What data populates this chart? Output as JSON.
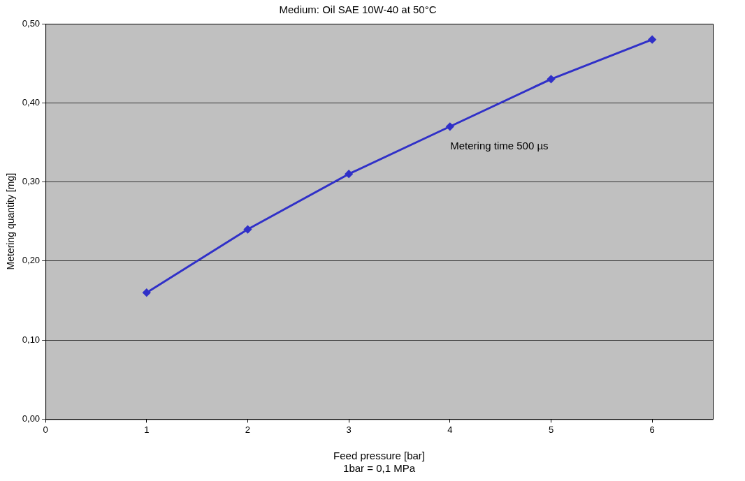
{
  "chart_data": {
    "type": "line",
    "title": "Medium: Oil SAE 10W-40 at 50°C",
    "xlabel": "Feed pressure [bar]\n1bar = 0,1 MPa",
    "ylabel": "Metering quantity [mg]",
    "x": [
      1,
      2,
      3,
      4,
      5,
      6
    ],
    "series": [
      {
        "color": "#3030c8",
        "values": [
          0.16,
          0.24,
          0.31,
          0.37,
          0.43,
          0.48
        ]
      }
    ],
    "xlim": [
      0,
      6.6
    ],
    "xticks": [
      0,
      1,
      2,
      3,
      4,
      5,
      6
    ],
    "ylim": [
      0,
      0.5
    ],
    "yticks": [
      {
        "value": 0,
        "label": "0,00"
      },
      {
        "value": 0.1,
        "label": "0,10"
      },
      {
        "value": 0.2,
        "label": "0,20"
      },
      {
        "value": 0.3,
        "label": "0,30"
      },
      {
        "value": 0.4,
        "label": "0,40"
      },
      {
        "value": 0.5,
        "label": "0,50"
      }
    ],
    "annotations": [
      "Metering time 500 µs"
    ],
    "grid": "y",
    "legend": false,
    "marker": "diamond",
    "line_style": "solid"
  }
}
